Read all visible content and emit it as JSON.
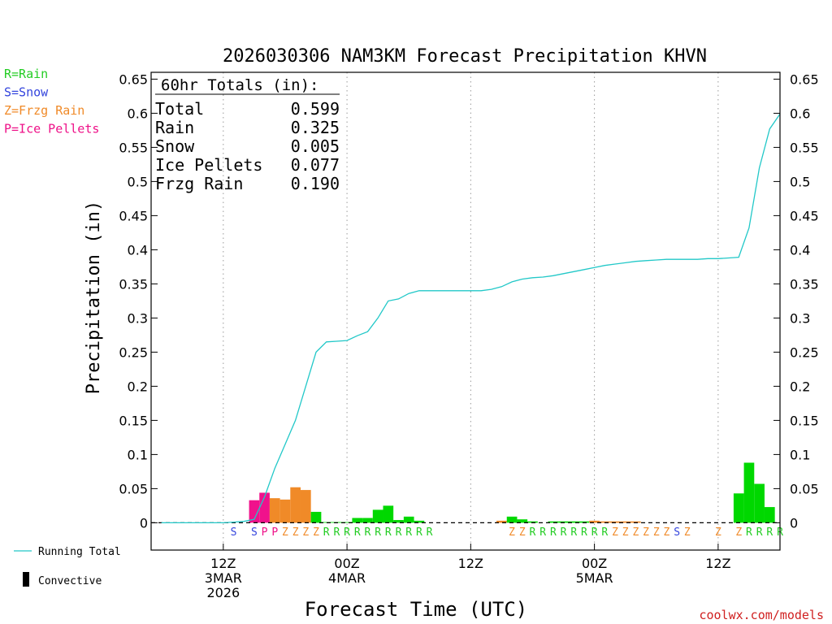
{
  "chart_data": {
    "type": "bar",
    "title": "2026030306 NAM3KM Forecast Precipitation KHVN",
    "xlabel": "Forecast Time (UTC)",
    "ylabel": "Precipitation (in)",
    "ylim": [
      -0.04,
      0.66
    ],
    "xlim_hours": [
      -1,
      60
    ],
    "yticks": [
      "0.65",
      "0.6",
      "0.55",
      "0.5",
      "0.45",
      "0.4",
      "0.35",
      "0.3",
      "0.25",
      "0.2",
      "0.15",
      "0.1",
      "0.05",
      "0"
    ],
    "yticks_values": [
      0.65,
      0.6,
      0.55,
      0.5,
      0.45,
      0.4,
      0.35,
      0.3,
      0.25,
      0.2,
      0.15,
      0.1,
      0.05,
      0
    ],
    "xticks": [
      {
        "hour": 6,
        "line1": "12Z",
        "line2": "3MAR",
        "line3": "2026"
      },
      {
        "hour": 18,
        "line1": "00Z",
        "line2": "4MAR",
        "line3": ""
      },
      {
        "hour": 30,
        "line1": "12Z",
        "line2": "",
        "line3": ""
      },
      {
        "hour": 42,
        "line1": "00Z",
        "line2": "5MAR",
        "line3": ""
      },
      {
        "hour": 54,
        "line1": "12Z",
        "line2": "",
        "line3": ""
      }
    ],
    "totals": {
      "heading": "60hr Totals (in):",
      "rows": [
        {
          "label": "Total",
          "value": "0.599"
        },
        {
          "label": "Rain",
          "value": "0.325"
        },
        {
          "label": "Snow",
          "value": "0.005"
        },
        {
          "label": "Ice Pellets",
          "value": "0.077"
        },
        {
          "label": "Frzg Rain",
          "value": "0.190"
        }
      ]
    },
    "type_legend": [
      {
        "text": "R=Rain",
        "color": "#22cc22"
      },
      {
        "text": "S=Snow",
        "color": "#3344dd"
      },
      {
        "text": "Z=Frzg Rain",
        "color": "#f08a28"
      },
      {
        "text": "P=Ice Pellets",
        "color": "#ee1188"
      }
    ],
    "type_colors": {
      "R": "#00d800",
      "S": "#3344dd",
      "Z": "#f08a28",
      "P": "#f0128c"
    },
    "type_text_colors": {
      "R": "#22cc22",
      "S": "#3344dd",
      "Z": "#f08a28",
      "P": "#ee1188"
    },
    "series_legend": [
      {
        "text": "Running Total",
        "kind": "line",
        "color": "#22c8c8"
      },
      {
        "text": "Convective",
        "kind": "bar",
        "color": "#000000"
      }
    ],
    "credit": "coolwx.com/models",
    "bars": [
      {
        "hour": 9,
        "type": "P",
        "value": 0.033
      },
      {
        "hour": 10,
        "type": "P",
        "value": 0.044
      },
      {
        "hour": 11,
        "type": "Z",
        "value": 0.036
      },
      {
        "hour": 12,
        "type": "Z",
        "value": 0.034
      },
      {
        "hour": 13,
        "type": "Z",
        "value": 0.052
      },
      {
        "hour": 14,
        "type": "Z",
        "value": 0.048
      },
      {
        "hour": 15,
        "type": "R",
        "value": 0.016
      },
      {
        "hour": 16,
        "type": "R",
        "value": 0.001
      },
      {
        "hour": 17,
        "type": "R",
        "value": 0.001
      },
      {
        "hour": 18,
        "type": "R",
        "value": 0.001
      },
      {
        "hour": 19,
        "type": "R",
        "value": 0.007
      },
      {
        "hour": 20,
        "type": "R",
        "value": 0.007
      },
      {
        "hour": 21,
        "type": "R",
        "value": 0.019
      },
      {
        "hour": 22,
        "type": "R",
        "value": 0.025
      },
      {
        "hour": 23,
        "type": "R",
        "value": 0.004
      },
      {
        "hour": 24,
        "type": "R",
        "value": 0.009
      },
      {
        "hour": 25,
        "type": "R",
        "value": 0.003
      },
      {
        "hour": 33,
        "type": "Z",
        "value": 0.003
      },
      {
        "hour": 34,
        "type": "R",
        "value": 0.009
      },
      {
        "hour": 35,
        "type": "R",
        "value": 0.005
      },
      {
        "hour": 36,
        "type": "R",
        "value": 0.002
      },
      {
        "hour": 38,
        "type": "R",
        "value": 0.002
      },
      {
        "hour": 39,
        "type": "R",
        "value": 0.002
      },
      {
        "hour": 40,
        "type": "R",
        "value": 0.002
      },
      {
        "hour": 41,
        "type": "R",
        "value": 0.002
      },
      {
        "hour": 42,
        "type": "Z",
        "value": 0.003
      },
      {
        "hour": 43,
        "type": "Z",
        "value": 0.002
      },
      {
        "hour": 44,
        "type": "Z",
        "value": 0.002
      },
      {
        "hour": 45,
        "type": "Z",
        "value": 0.002
      },
      {
        "hour": 46,
        "type": "Z",
        "value": 0.002
      },
      {
        "hour": 56,
        "type": "R",
        "value": 0.043
      },
      {
        "hour": 57,
        "type": "R",
        "value": 0.088
      },
      {
        "hour": 58,
        "type": "R",
        "value": 0.057
      },
      {
        "hour": 59,
        "type": "R",
        "value": 0.023
      }
    ],
    "type_markers": [
      {
        "hour": 7,
        "type": "S"
      },
      {
        "hour": 9,
        "type": "S"
      },
      {
        "hour": 10,
        "type": "P"
      },
      {
        "hour": 11,
        "type": "P"
      },
      {
        "hour": 12,
        "type": "Z"
      },
      {
        "hour": 13,
        "type": "Z"
      },
      {
        "hour": 14,
        "type": "Z"
      },
      {
        "hour": 15,
        "type": "Z"
      },
      {
        "hour": 16,
        "type": "R"
      },
      {
        "hour": 17,
        "type": "R"
      },
      {
        "hour": 18,
        "type": "R"
      },
      {
        "hour": 19,
        "type": "R"
      },
      {
        "hour": 20,
        "type": "R"
      },
      {
        "hour": 21,
        "type": "R"
      },
      {
        "hour": 22,
        "type": "R"
      },
      {
        "hour": 23,
        "type": "R"
      },
      {
        "hour": 24,
        "type": "R"
      },
      {
        "hour": 25,
        "type": "R"
      },
      {
        "hour": 26,
        "type": "R"
      },
      {
        "hour": 34,
        "type": "Z"
      },
      {
        "hour": 35,
        "type": "Z"
      },
      {
        "hour": 36,
        "type": "R"
      },
      {
        "hour": 37,
        "type": "R"
      },
      {
        "hour": 38,
        "type": "R"
      },
      {
        "hour": 39,
        "type": "R"
      },
      {
        "hour": 40,
        "type": "R"
      },
      {
        "hour": 41,
        "type": "R"
      },
      {
        "hour": 42,
        "type": "R"
      },
      {
        "hour": 43,
        "type": "R"
      },
      {
        "hour": 44,
        "type": "Z"
      },
      {
        "hour": 45,
        "type": "Z"
      },
      {
        "hour": 46,
        "type": "Z"
      },
      {
        "hour": 47,
        "type": "Z"
      },
      {
        "hour": 48,
        "type": "Z"
      },
      {
        "hour": 49,
        "type": "Z"
      },
      {
        "hour": 50,
        "type": "S"
      },
      {
        "hour": 51,
        "type": "Z"
      },
      {
        "hour": 54,
        "type": "Z"
      },
      {
        "hour": 56,
        "type": "Z"
      },
      {
        "hour": 57,
        "type": "R"
      },
      {
        "hour": 58,
        "type": "R"
      },
      {
        "hour": 59,
        "type": "R"
      },
      {
        "hour": 60,
        "type": "R"
      }
    ],
    "running_total": {
      "name": "Running Total",
      "x": [
        0,
        1,
        2,
        3,
        4,
        5,
        6,
        7,
        8,
        9,
        10,
        11,
        12,
        13,
        14,
        15,
        16,
        17,
        18,
        19,
        20,
        21,
        22,
        23,
        24,
        25,
        26,
        27,
        28,
        29,
        30,
        31,
        32,
        33,
        34,
        35,
        36,
        37,
        38,
        39,
        40,
        41,
        42,
        43,
        44,
        45,
        46,
        47,
        48,
        49,
        50,
        51,
        52,
        53,
        54,
        55,
        56,
        57,
        58,
        59,
        60
      ],
      "y": [
        0,
        0,
        0,
        0,
        0,
        0,
        0,
        0.001,
        0.002,
        0.005,
        0.038,
        0.08,
        0.115,
        0.15,
        0.2,
        0.25,
        0.265,
        0.266,
        0.267,
        0.274,
        0.28,
        0.3,
        0.325,
        0.328,
        0.336,
        0.34,
        0.34,
        0.34,
        0.34,
        0.34,
        0.34,
        0.34,
        0.342,
        0.346,
        0.353,
        0.357,
        0.359,
        0.36,
        0.362,
        0.365,
        0.368,
        0.371,
        0.374,
        0.377,
        0.379,
        0.381,
        0.383,
        0.384,
        0.385,
        0.386,
        0.386,
        0.386,
        0.386,
        0.387,
        0.387,
        0.388,
        0.389,
        0.432,
        0.52,
        0.577,
        0.599
      ]
    }
  }
}
